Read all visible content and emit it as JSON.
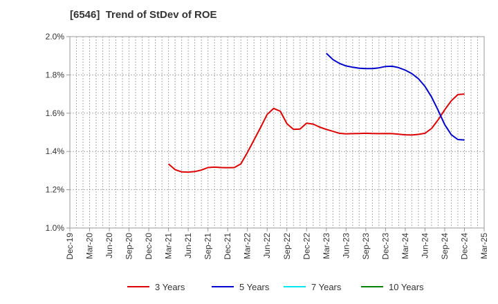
{
  "chart_data": {
    "type": "line",
    "title": "[6546]  Trend of StDev of ROE",
    "xlabel": "",
    "ylabel": "",
    "x_start": "2019-12",
    "x_tick_labels": [
      "Dec-19",
      "Mar-20",
      "Jun-20",
      "Sep-20",
      "Dec-20",
      "Mar-21",
      "Jun-21",
      "Sep-21",
      "Dec-21",
      "Mar-22",
      "Jun-22",
      "Sep-22",
      "Dec-22",
      "Mar-23",
      "Jun-23",
      "Sep-23",
      "Dec-23",
      "Mar-24",
      "Jun-24",
      "Sep-24",
      "Dec-24",
      "Mar-25"
    ],
    "y_tick_labels": [
      "1.0%",
      "1.2%",
      "1.4%",
      "1.6%",
      "1.8%",
      "2.0%"
    ],
    "ylim": [
      1.0,
      2.0
    ],
    "grid": true,
    "legend_position": "bottom",
    "series": [
      {
        "name": "3 Years",
        "color": "#dd0000",
        "points": [
          [
            "Mar-21",
            1.335
          ],
          [
            "Apr-21",
            1.305
          ],
          [
            "May-21",
            1.293
          ],
          [
            "Jun-21",
            1.292
          ],
          [
            "Jul-21",
            1.295
          ],
          [
            "Aug-21",
            1.303
          ],
          [
            "Sep-21",
            1.316
          ],
          [
            "Oct-21",
            1.318
          ],
          [
            "Nov-21",
            1.316
          ],
          [
            "Dec-21",
            1.315
          ],
          [
            "Jan-22",
            1.316
          ],
          [
            "Feb-22",
            1.335
          ],
          [
            "Mar-22",
            1.395
          ],
          [
            "Apr-22",
            1.46
          ],
          [
            "May-22",
            1.525
          ],
          [
            "Jun-22",
            1.593
          ],
          [
            "Jul-22",
            1.625
          ],
          [
            "Aug-22",
            1.61
          ],
          [
            "Sep-22",
            1.545
          ],
          [
            "Oct-22",
            1.515
          ],
          [
            "Nov-22",
            1.517
          ],
          [
            "Dec-22",
            1.548
          ],
          [
            "Jan-23",
            1.543
          ],
          [
            "Feb-23",
            1.527
          ],
          [
            "Mar-23",
            1.515
          ],
          [
            "Apr-23",
            1.505
          ],
          [
            "May-23",
            1.495
          ],
          [
            "Jun-23",
            1.492
          ],
          [
            "Jul-23",
            1.493
          ],
          [
            "Aug-23",
            1.494
          ],
          [
            "Sep-23",
            1.495
          ],
          [
            "Oct-23",
            1.494
          ],
          [
            "Nov-23",
            1.493
          ],
          [
            "Dec-23",
            1.494
          ],
          [
            "Jan-24",
            1.493
          ],
          [
            "Feb-24",
            1.49
          ],
          [
            "Mar-24",
            1.487
          ],
          [
            "Apr-24",
            1.486
          ],
          [
            "May-24",
            1.489
          ],
          [
            "Jun-24",
            1.495
          ],
          [
            "Jul-24",
            1.52
          ],
          [
            "Aug-24",
            1.565
          ],
          [
            "Sep-24",
            1.618
          ],
          [
            "Oct-24",
            1.665
          ],
          [
            "Nov-24",
            1.697
          ],
          [
            "Dec-24",
            1.7
          ]
        ]
      },
      {
        "name": "5 Years",
        "color": "#0000cc",
        "points": [
          [
            "Mar-23",
            1.913
          ],
          [
            "Apr-23",
            1.88
          ],
          [
            "May-23",
            1.86
          ],
          [
            "Jun-23",
            1.847
          ],
          [
            "Jul-23",
            1.84
          ],
          [
            "Aug-23",
            1.835
          ],
          [
            "Sep-23",
            1.833
          ],
          [
            "Oct-23",
            1.833
          ],
          [
            "Nov-23",
            1.837
          ],
          [
            "Dec-23",
            1.844
          ],
          [
            "Jan-24",
            1.845
          ],
          [
            "Feb-24",
            1.838
          ],
          [
            "Mar-24",
            1.825
          ],
          [
            "Apr-24",
            1.807
          ],
          [
            "May-24",
            1.78
          ],
          [
            "Jun-24",
            1.74
          ],
          [
            "Jul-24",
            1.685
          ],
          [
            "Aug-24",
            1.615
          ],
          [
            "Sep-24",
            1.54
          ],
          [
            "Oct-24",
            1.487
          ],
          [
            "Nov-24",
            1.462
          ],
          [
            "Dec-24",
            1.46
          ]
        ]
      },
      {
        "name": "7 Years",
        "color": "#00e5ee",
        "points": []
      },
      {
        "name": "10 Years",
        "color": "#008000",
        "points": []
      }
    ]
  }
}
